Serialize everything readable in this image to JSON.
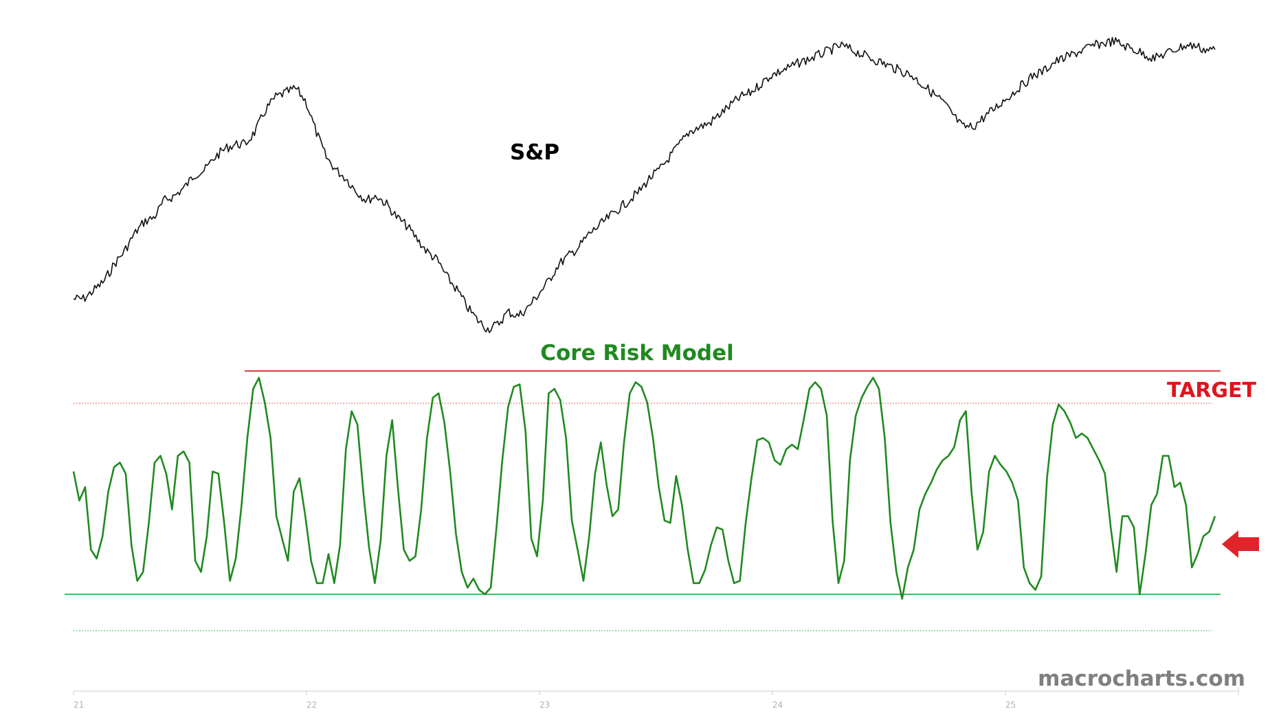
{
  "chart_data": [
    {
      "type": "line",
      "title": "S&P",
      "color": "#111111",
      "series": [
        {
          "values": [
            0.0,
            0.0,
            3.3,
            6.7,
            13.3,
            18.3,
            25.0,
            30.0,
            31.7,
            38.3,
            40.0,
            43.3,
            48.3,
            50.0,
            55.0,
            58.3,
            60.0,
            60.0,
            65.0,
            73.3,
            78.3,
            80.0,
            81.7,
            76.7,
            65.0,
            55.0,
            50.0,
            46.7,
            41.7,
            38.3,
            40.0,
            36.7,
            31.7,
            28.3,
            23.3,
            18.3,
            15.0,
            8.3,
            3.3,
            -3.3,
            -8.3,
            -11.7,
            -10.0,
            -5.0,
            -6.7,
            -3.3,
            1.7,
            6.7,
            13.3,
            16.7,
            20.0,
            25.0,
            28.3,
            31.7,
            35.0,
            38.3,
            41.7,
            46.7,
            50.0,
            55.0,
            60.0,
            65.0,
            66.7,
            68.3,
            71.7,
            75.0,
            78.3,
            80.0,
            83.3,
            86.7,
            88.3,
            90.0,
            92.0,
            93.3,
            95.0,
            96.7,
            98.3,
            96.7,
            95.0,
            93.3,
            91.7,
            90.0,
            88.3,
            86.7,
            83.3,
            80.0,
            76.7,
            71.7,
            66.7,
            66.7,
            70.0,
            73.3,
            76.7,
            80.0,
            83.3,
            86.7,
            88.3,
            91.7,
            93.3,
            95.0,
            96.7,
            98.3,
            99.3,
            100.0,
            98.3,
            96.7,
            95.0,
            93.3,
            95.0,
            96.7,
            98.3,
            98.3,
            96.7,
            96.7
          ]
        }
      ]
    },
    {
      "type": "line",
      "title": "Core Risk Model",
      "color": "#1f8a1f",
      "x_ticks": [
        "21",
        "22",
        "23",
        "24",
        "25"
      ],
      "annotations": [
        "TARGET"
      ],
      "reference_lines": [
        {
          "style": "solid",
          "color": "#d42020"
        },
        {
          "style": "dotted",
          "color": "#e06060"
        },
        {
          "style": "solid",
          "color": "#3dbf6a"
        },
        {
          "style": "dotted",
          "color": "#3dbf6a"
        }
      ],
      "pointer": "red arrow at current reading",
      "series": [
        {
          "values": [
            0.55,
            0.42,
            0.48,
            0.2,
            0.16,
            0.26,
            0.46,
            0.57,
            0.59,
            0.54,
            0.22,
            0.06,
            0.1,
            0.32,
            0.59,
            0.62,
            0.54,
            0.38,
            0.62,
            0.64,
            0.59,
            0.15,
            0.1,
            0.26,
            0.55,
            0.54,
            0.32,
            0.06,
            0.16,
            0.4,
            0.7,
            0.92,
            0.97,
            0.86,
            0.7,
            0.35,
            0.25,
            0.15,
            0.46,
            0.52,
            0.35,
            0.15,
            0.05,
            0.05,
            0.18,
            0.05,
            0.22,
            0.65,
            0.82,
            0.76,
            0.46,
            0.21,
            0.05,
            0.24,
            0.62,
            0.78,
            0.47,
            0.2,
            0.15,
            0.17,
            0.38,
            0.7,
            0.88,
            0.9,
            0.77,
            0.55,
            0.27,
            0.1,
            0.03,
            0.07,
            0.02,
            0.0,
            0.03,
            0.3,
            0.6,
            0.84,
            0.93,
            0.94,
            0.73,
            0.25,
            0.17,
            0.42,
            0.9,
            0.92,
            0.87,
            0.7,
            0.33,
            0.2,
            0.06,
            0.26,
            0.54,
            0.68,
            0.49,
            0.35,
            0.38,
            0.68,
            0.9,
            0.95,
            0.93,
            0.86,
            0.7,
            0.48,
            0.33,
            0.32,
            0.53,
            0.4,
            0.2,
            0.05,
            0.05,
            0.11,
            0.22,
            0.3,
            0.29,
            0.15,
            0.05,
            0.06,
            0.32,
            0.52,
            0.69,
            0.7,
            0.68,
            0.6,
            0.58,
            0.65,
            0.67,
            0.65,
            0.78,
            0.92,
            0.95,
            0.92,
            0.8,
            0.33,
            0.05,
            0.15,
            0.6,
            0.8,
            0.88,
            0.93,
            0.97,
            0.92,
            0.7,
            0.32,
            0.1,
            -0.02,
            0.12,
            0.2,
            0.38,
            0.45,
            0.5,
            0.56,
            0.6,
            0.62,
            0.66,
            0.78,
            0.82,
            0.45,
            0.2,
            0.28,
            0.55,
            0.62,
            0.58,
            0.55,
            0.5,
            0.42,
            0.12,
            0.05,
            0.02,
            0.08,
            0.52,
            0.76,
            0.85,
            0.82,
            0.77,
            0.7,
            0.72,
            0.7,
            0.65,
            0.6,
            0.54,
            0.3,
            0.1,
            0.35,
            0.35,
            0.3,
            0.0,
            0.18,
            0.4,
            0.45,
            0.62,
            0.62,
            0.48,
            0.5,
            0.4,
            0.12,
            0.18,
            0.26,
            0.28,
            0.35
          ]
        }
      ]
    }
  ],
  "credit": "macrocharts.com"
}
